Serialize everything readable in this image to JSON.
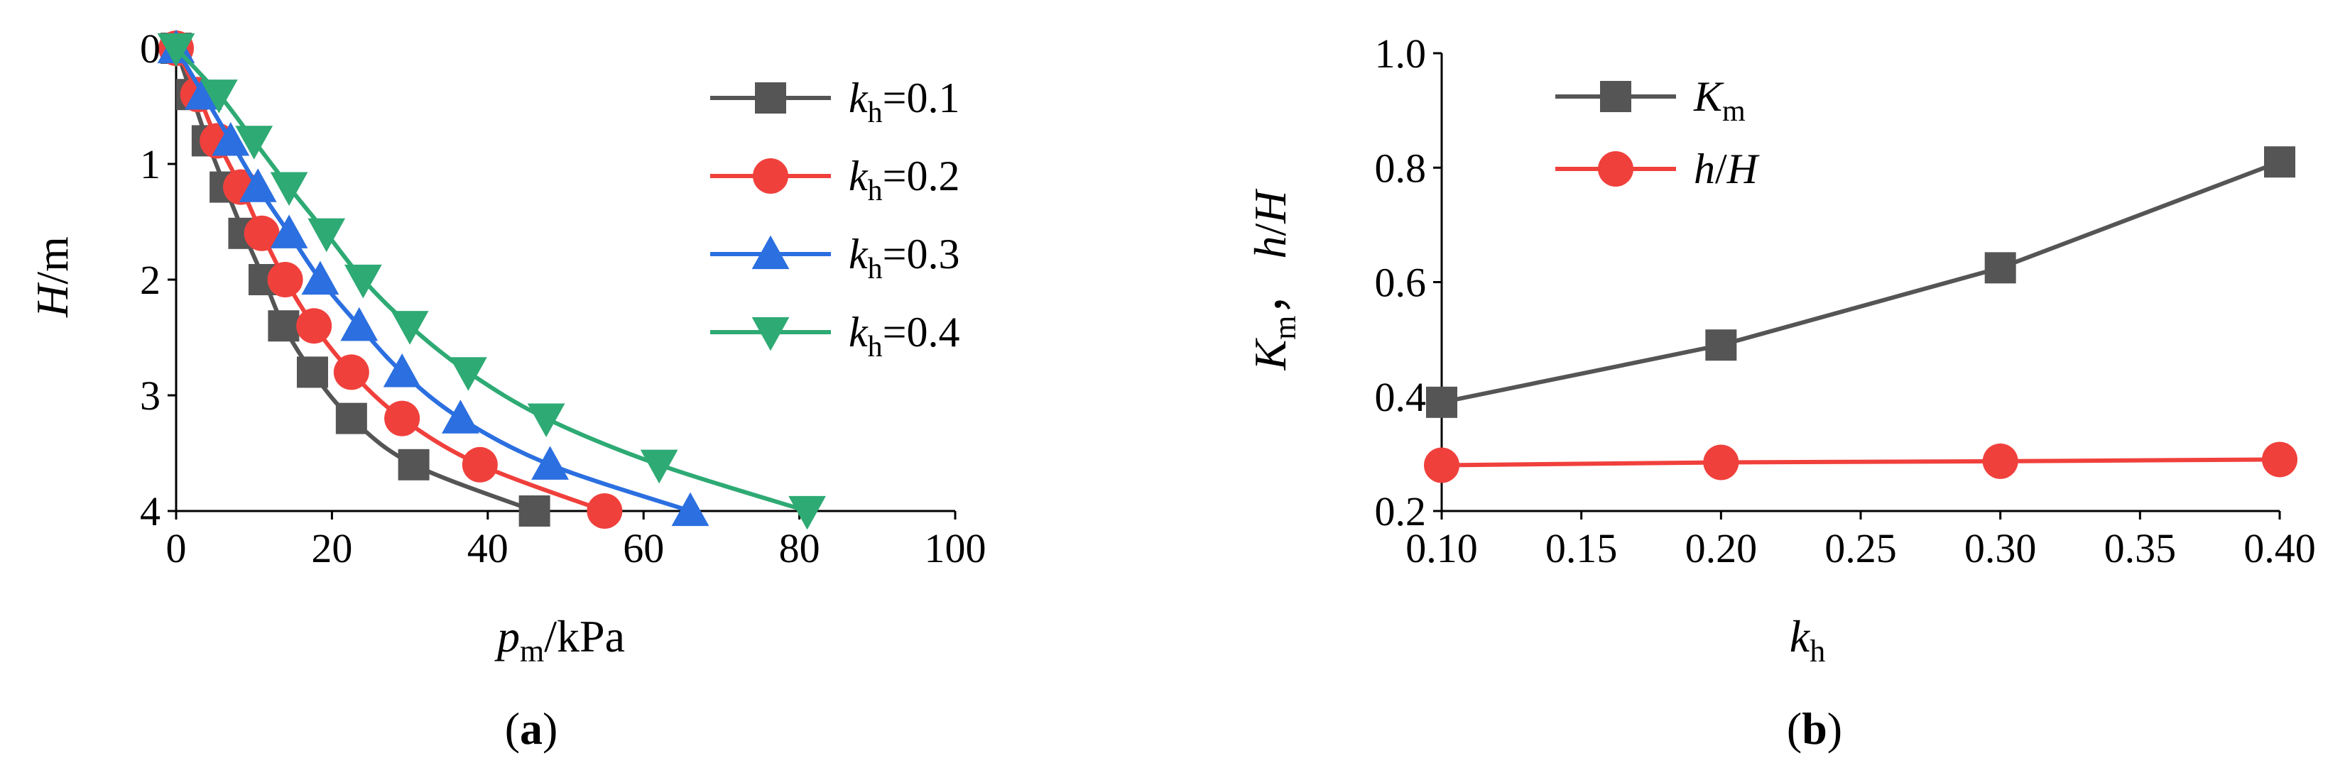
{
  "chart_data": [
    {
      "type": "line",
      "panel_label": "a",
      "xlabel": {
        "main": "p",
        "sub": "m",
        "rest": "/kPa"
      },
      "ylabel": {
        "main": "H",
        "rest": "/m"
      },
      "xlim": [
        0,
        100
      ],
      "ylim": [
        0,
        4
      ],
      "y_inverted": true,
      "x_ticks": [
        "0",
        "20",
        "40",
        "60",
        "80",
        "100"
      ],
      "x_tick_values": [
        0,
        20,
        40,
        60,
        80,
        100
      ],
      "y_ticks": [
        "0",
        "1",
        "2",
        "3",
        "4"
      ],
      "y_tick_values": [
        0,
        1,
        2,
        3,
        4
      ],
      "legend_position": "top-right",
      "series": [
        {
          "name": "kh=0.1",
          "label_main": "k",
          "label_sub": "h",
          "label_rest": "=0.1",
          "color": "#555555",
          "marker": "square",
          "points": [
            [
              0,
              0
            ],
            [
              2,
              0.4
            ],
            [
              4,
              0.8
            ],
            [
              6.3,
              1.2
            ],
            [
              8.7,
              1.6
            ],
            [
              11.3,
              2.0
            ],
            [
              13.8,
              2.4
            ],
            [
              17.5,
              2.8
            ],
            [
              22.5,
              3.2
            ],
            [
              30.5,
              3.6
            ],
            [
              46,
              4.0
            ]
          ]
        },
        {
          "name": "kh=0.2",
          "label_main": "k",
          "label_sub": "h",
          "label_rest": "=0.2",
          "color": "#f0403c",
          "marker": "circle",
          "points": [
            [
              0,
              0
            ],
            [
              2.8,
              0.4
            ],
            [
              5.3,
              0.8
            ],
            [
              8.3,
              1.2
            ],
            [
              11,
              1.6
            ],
            [
              14,
              2.0
            ],
            [
              17.7,
              2.4
            ],
            [
              22.5,
              2.8
            ],
            [
              29,
              3.2
            ],
            [
              39,
              3.6
            ],
            [
              55,
              4.0
            ]
          ]
        },
        {
          "name": "kh=0.3",
          "label_main": "k",
          "label_sub": "h",
          "label_rest": "=0.3",
          "color": "#2b6fe0",
          "marker": "triangle-up",
          "points": [
            [
              0,
              0
            ],
            [
              3.5,
              0.4
            ],
            [
              7,
              0.8
            ],
            [
              10.5,
              1.2
            ],
            [
              14.5,
              1.6
            ],
            [
              18.5,
              2.0
            ],
            [
              23.5,
              2.4
            ],
            [
              29,
              2.8
            ],
            [
              36.5,
              3.2
            ],
            [
              48,
              3.6
            ],
            [
              66,
              4.0
            ]
          ]
        },
        {
          "name": "kh=0.4",
          "label_main": "k",
          "label_sub": "h",
          "label_rest": "=0.4",
          "color": "#2eaa74",
          "marker": "triangle-down",
          "points": [
            [
              0,
              0
            ],
            [
              5.5,
              0.4
            ],
            [
              10,
              0.8
            ],
            [
              14.5,
              1.2
            ],
            [
              19.3,
              1.6
            ],
            [
              24,
              2.0
            ],
            [
              30,
              2.4
            ],
            [
              37.5,
              2.8
            ],
            [
              47.5,
              3.2
            ],
            [
              62,
              3.6
            ],
            [
              81,
              4.0
            ]
          ]
        }
      ]
    },
    {
      "type": "line",
      "panel_label": "b",
      "xlabel": {
        "main": "k",
        "sub": "h",
        "rest": ""
      },
      "ylabel": {
        "main": "K",
        "sub": "m",
        "rest": "， ",
        "main2": "h",
        "rest2": "/",
        "main3": "H"
      },
      "xlim": [
        0.1,
        0.4
      ],
      "ylim": [
        0.2,
        1.0
      ],
      "x_ticks": [
        "0.10",
        "0.15",
        "0.20",
        "0.25",
        "0.30",
        "0.35",
        "0.40"
      ],
      "x_tick_values": [
        0.1,
        0.15,
        0.2,
        0.25,
        0.3,
        0.35,
        0.4
      ],
      "y_ticks": [
        "0.2",
        "0.4",
        "0.6",
        "0.8",
        "1.0"
      ],
      "y_tick_values": [
        0.2,
        0.4,
        0.6,
        0.8,
        1.0
      ],
      "legend_position": "top-left",
      "series": [
        {
          "name": "Km",
          "label_main": "K",
          "label_sub": "m",
          "label_rest": "",
          "color": "#555555",
          "marker": "square",
          "points": [
            [
              0.1,
              0.39
            ],
            [
              0.2,
              0.49
            ],
            [
              0.3,
              0.625
            ],
            [
              0.4,
              0.81
            ]
          ]
        },
        {
          "name": "h/H",
          "label_main": "h",
          "label_sub": "",
          "label_rest": "/H",
          "color": "#f0403c",
          "marker": "circle",
          "points": [
            [
              0.1,
              0.28
            ],
            [
              0.2,
              0.285
            ],
            [
              0.3,
              0.287
            ],
            [
              0.4,
              0.29
            ]
          ]
        }
      ]
    }
  ]
}
